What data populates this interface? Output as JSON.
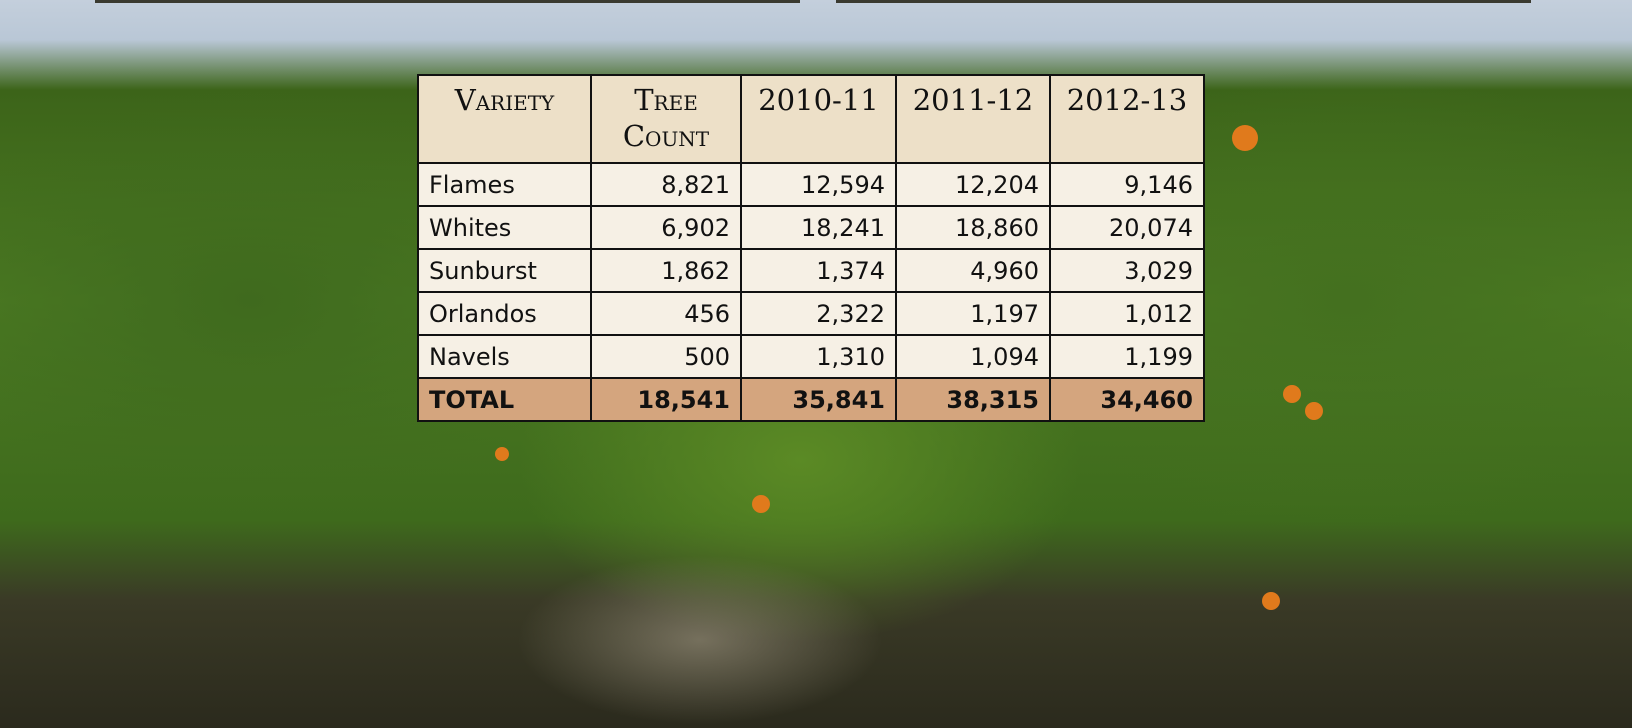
{
  "table": {
    "header": [
      "Variety",
      "Tree Count",
      "2010-11",
      "2011-12",
      "2012-13"
    ],
    "rows": [
      [
        "Flames",
        "8,821",
        "12,594",
        "12,204",
        "9,146"
      ],
      [
        "Whites",
        "6,902",
        "18,241",
        "18,860",
        "20,074"
      ],
      [
        "Sunburst",
        "1,862",
        "1,374",
        "4,960",
        "3,029"
      ],
      [
        "Orlandos",
        "456",
        "2,322",
        "1,197",
        "1,012"
      ],
      [
        "Navels",
        "500",
        "1,310",
        "1,094",
        "1,199"
      ]
    ],
    "total": [
      "TOTAL",
      "18,541",
      "35,841",
      "38,315",
      "34,460"
    ]
  }
}
